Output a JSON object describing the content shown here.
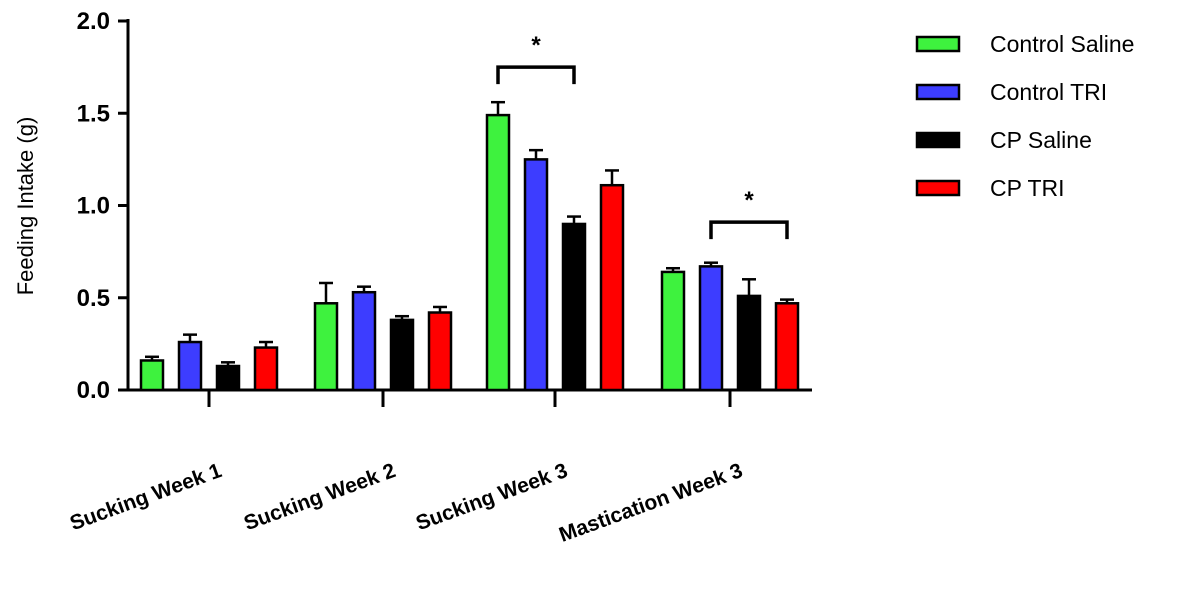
{
  "chart_data": {
    "type": "bar",
    "ylabel": "Feeding Intake (g)",
    "xlabel": "",
    "ylim": [
      0,
      2.0
    ],
    "yticks": [
      "0.0",
      "0.5",
      "1.0",
      "1.5",
      "2.0"
    ],
    "categories": [
      "Sucking Week 1",
      "Sucking Week 2",
      "Sucking Week 3",
      "Mastication Week 3"
    ],
    "series": [
      {
        "name": "Control Saline",
        "color": "#3ef23e",
        "values": [
          0.16,
          0.47,
          1.49,
          0.64
        ],
        "errors": [
          0.02,
          0.11,
          0.07,
          0.02
        ]
      },
      {
        "name": "Control TRI",
        "color": "#3d3dff",
        "values": [
          0.26,
          0.53,
          1.25,
          0.67
        ],
        "errors": [
          0.04,
          0.03,
          0.05,
          0.02
        ]
      },
      {
        "name": "CP Saline",
        "color": "#000000",
        "values": [
          0.13,
          0.38,
          0.9,
          0.51
        ],
        "errors": [
          0.02,
          0.02,
          0.04,
          0.09
        ]
      },
      {
        "name": "CP TRI",
        "color": "#ff0000",
        "values": [
          0.23,
          0.42,
          1.11,
          0.47
        ],
        "errors": [
          0.03,
          0.03,
          0.08,
          0.02
        ]
      }
    ],
    "annotations": [
      {
        "text": "*",
        "category": 2,
        "from_series": 0,
        "to_series": 2,
        "level": 1.75
      },
      {
        "text": "*",
        "category": 3,
        "from_series": 1,
        "to_series": 3,
        "level": 0.91
      }
    ],
    "legend": "right",
    "grid": false
  }
}
